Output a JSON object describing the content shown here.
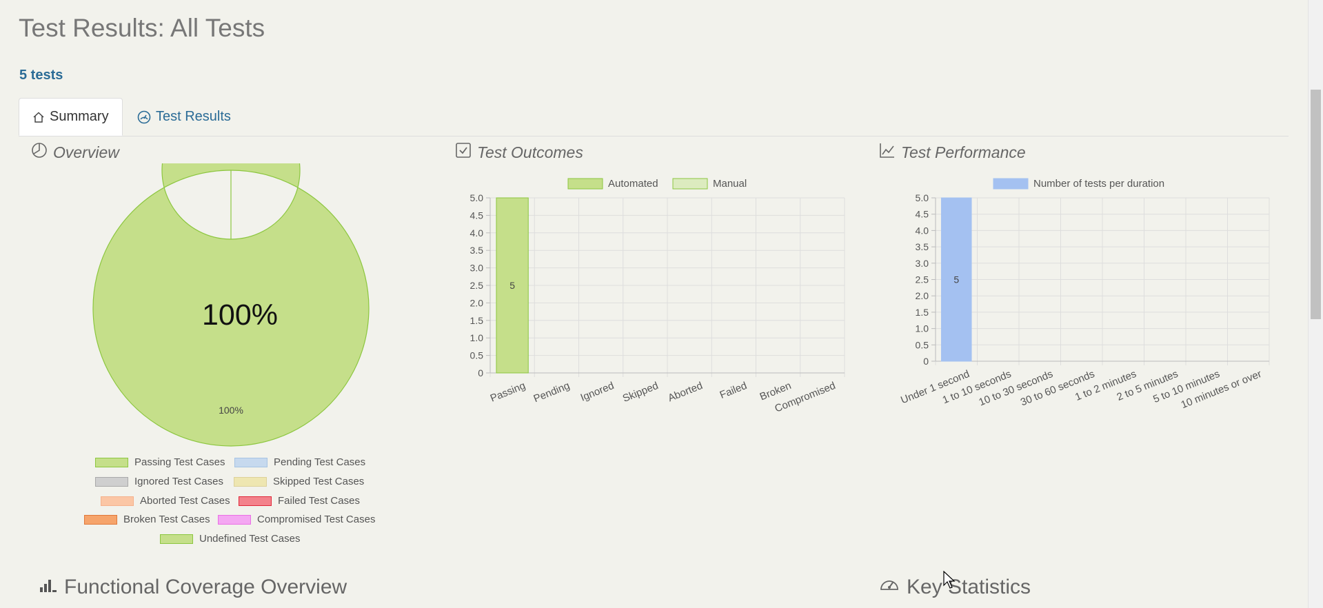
{
  "page": {
    "title": "Test Results: All Tests",
    "test_count": "5 tests"
  },
  "tabs": [
    {
      "label": "Summary",
      "icon": "home-icon",
      "active": true
    },
    {
      "label": "Test Results",
      "icon": "gauge-icon",
      "active": false
    }
  ],
  "sections": {
    "overview": "Overview",
    "outcomes": "Test Outcomes",
    "performance": "Test Performance",
    "functional_coverage": "Functional Coverage Overview",
    "key_statistics": "Key Statistics"
  },
  "colors": {
    "passing": "#c5df8a",
    "passing_border": "#8cc63f",
    "manual": "#dcebbf",
    "duration": "#a4c1f1",
    "link": "#2a6b96"
  },
  "chart_data": [
    {
      "type": "pie",
      "variant": "doughnut",
      "center_label": "100%",
      "slices": [
        {
          "label": "Passing Test Cases",
          "value": 100,
          "data_label": "100%",
          "color": "#c5df8a",
          "border": "#8cc63f"
        },
        {
          "label": "Pending Test Cases",
          "value": 0,
          "color": "#c6d9ee",
          "border": "#a6c3e3"
        },
        {
          "label": "Ignored Test Cases",
          "value": 0,
          "color": "#cfcfcf",
          "border": "#a9a9a9"
        },
        {
          "label": "Skipped Test Cases",
          "value": 0,
          "color": "#eee6b1",
          "border": "#ddd19a"
        },
        {
          "label": "Aborted Test Cases",
          "value": 0,
          "color": "#fbc6a5",
          "border": "#f5b18c"
        },
        {
          "label": "Failed Test Cases",
          "value": 0,
          "color": "#f3828b",
          "border": "#e0283a"
        },
        {
          "label": "Broken Test Cases",
          "value": 0,
          "color": "#f6a46b",
          "border": "#e0783a"
        },
        {
          "label": "Compromised Test Cases",
          "value": 0,
          "color": "#f4a7f2",
          "border": "#ea6fe6"
        },
        {
          "label": "Undefined Test Cases",
          "value": 0,
          "color": "#c5df8a",
          "border": "#8cc63f"
        }
      ]
    },
    {
      "type": "bar",
      "stacked": true,
      "categories": [
        "Passing",
        "Pending",
        "Ignored",
        "Skipped",
        "Aborted",
        "Failed",
        "Broken",
        "Compromised"
      ],
      "series": [
        {
          "name": "Automated",
          "values": [
            5,
            0,
            0,
            0,
            0,
            0,
            0,
            0
          ],
          "color": "#c5df8a",
          "border": "#8cc63f",
          "data_labels": [
            "5",
            "",
            "",
            "",
            "",
            "",
            "",
            ""
          ]
        },
        {
          "name": "Manual",
          "values": [
            0,
            0,
            0,
            0,
            0,
            0,
            0,
            0
          ],
          "color": "#dcebbf",
          "border": "#8cc63f",
          "data_labels": [
            "",
            "",
            "",
            "",
            "",
            "",
            "",
            ""
          ]
        }
      ],
      "ylim": [
        0,
        5
      ],
      "yticks": [
        "0",
        "0.5",
        "1.0",
        "1.5",
        "2.0",
        "2.5",
        "3.0",
        "3.5",
        "4.0",
        "4.5",
        "5.0"
      ],
      "grid": true,
      "legend": "top-center"
    },
    {
      "type": "bar",
      "categories": [
        "Under 1 second",
        "1 to 10 seconds",
        "10 to 30 seconds",
        "30 to 60 seconds",
        "1 to 2 minutes",
        "2 to 5 minutes",
        "5 to 10 minutes",
        "10 minutes or over"
      ],
      "series": [
        {
          "name": "Number of tests per duration",
          "values": [
            5,
            0,
            0,
            0,
            0,
            0,
            0,
            0
          ],
          "color": "#a4c1f1",
          "border": "#a4c1f1",
          "data_labels": [
            "5",
            "",
            "",
            "",
            "",
            "",
            "",
            ""
          ]
        }
      ],
      "ylim": [
        0,
        5
      ],
      "yticks": [
        "0",
        "0.5",
        "1.0",
        "1.5",
        "2.0",
        "2.5",
        "3.0",
        "3.5",
        "4.0",
        "4.5",
        "5.0"
      ],
      "grid": true,
      "legend": "top-center"
    }
  ]
}
